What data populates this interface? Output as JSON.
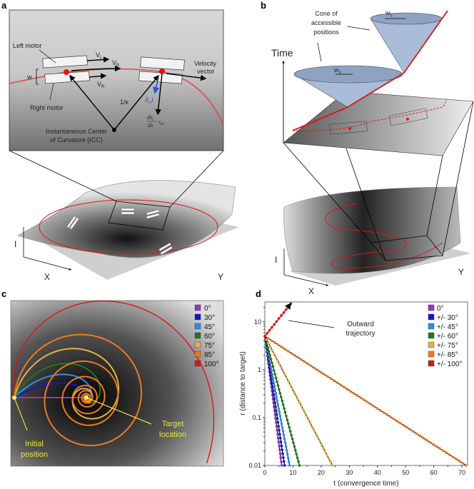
{
  "panels": {
    "a": {
      "label": "a",
      "left_motor": "Left motor",
      "right_motor": "Right motor",
      "v_l": "V",
      "v_l_sub": "L",
      "v_b": "V",
      "v_b_sub": "B",
      "v_r": "V",
      "v_r_sub": "R",
      "w": "w",
      "inv_kappa": "1/κ",
      "partial": "∂",
      "partial_sub": "m",
      "partial_tail": "l",
      "deriv": "dx",
      "deriv_sub": "l",
      "deriv_den": "ds",
      "deriv_eps": "ε",
      "deriv_eps_sub": "lm",
      "velocity_line1": "Velocity",
      "velocity_line2": "vector",
      "icc_line1": "Instantaneous Center",
      "icc_line2": "of Curvature (ICC)",
      "axis_i": "I",
      "axis_x": "X",
      "axis_y": "Y"
    },
    "b": {
      "label": "b",
      "cone_line1": "Cone of",
      "cone_line2": "accessible",
      "cone_line3": "positions",
      "w1": "w",
      "w1_sub": "1",
      "w2": "w",
      "w2_sub": "2",
      "time": "Time",
      "axis_i": "I",
      "axis_x": "X",
      "axis_y": "Y"
    },
    "c": {
      "label": "c",
      "initial_line1": "Initial",
      "initial_line2": "position",
      "target_line1": "Target",
      "target_line2": "location",
      "legend": [
        {
          "label": "0°",
          "color": "#9b30c8",
          "angle": 0
        },
        {
          "label": "30°",
          "color": "#1414d2",
          "angle": 30
        },
        {
          "label": "45°",
          "color": "#2e8ee6",
          "angle": 45
        },
        {
          "label": "60°",
          "color": "#1c7a1c",
          "angle": 60
        },
        {
          "label": "75°",
          "color": "#e6b044",
          "angle": 75
        },
        {
          "label": "85°",
          "color": "#f07822",
          "angle": 85
        },
        {
          "label": "100°",
          "color": "#e01414",
          "angle": 100
        }
      ]
    }
  },
  "chart_data": {
    "label": "d",
    "type": "scatter",
    "xlabel": "t (convergence time)",
    "ylabel": "r (distance to target)",
    "xlim": [
      0,
      72
    ],
    "ylim": [
      0.01,
      26
    ],
    "yscale": "log",
    "xticks": [
      "0",
      "10",
      "20",
      "30",
      "40",
      "50",
      "60",
      "70"
    ],
    "yticks": [
      "0.01",
      "0.1",
      "1",
      "10"
    ],
    "legend_position": "top-right",
    "annotation": [
      "Outward",
      "trajectory"
    ],
    "series": [
      {
        "name": "0°",
        "color": "#9b30c8",
        "points": [
          [
            0,
            5
          ],
          [
            6.0,
            0.01
          ]
        ]
      },
      {
        "name": "+/- 30°",
        "color": "#1414d2",
        "points": [
          [
            0,
            5
          ],
          [
            7.0,
            0.01
          ]
        ]
      },
      {
        "name": "+/- 45°",
        "color": "#2e8ee6",
        "points": [
          [
            0,
            5
          ],
          [
            8.8,
            0.01
          ]
        ]
      },
      {
        "name": "+/- 60°",
        "color": "#1c7a1c",
        "points": [
          [
            0,
            5
          ],
          [
            12.3,
            0.01
          ]
        ]
      },
      {
        "name": "+/- 75°",
        "color": "#e6b044",
        "points": [
          [
            0,
            5
          ],
          [
            24.0,
            0.01
          ]
        ]
      },
      {
        "name": "+/- 85°",
        "color": "#f07822",
        "points": [
          [
            0,
            5
          ],
          [
            71.5,
            0.01
          ]
        ]
      },
      {
        "name": "+/- 100°",
        "color": "#e01414",
        "points": [
          [
            0,
            5
          ],
          [
            9.2,
            24
          ]
        ]
      }
    ]
  }
}
